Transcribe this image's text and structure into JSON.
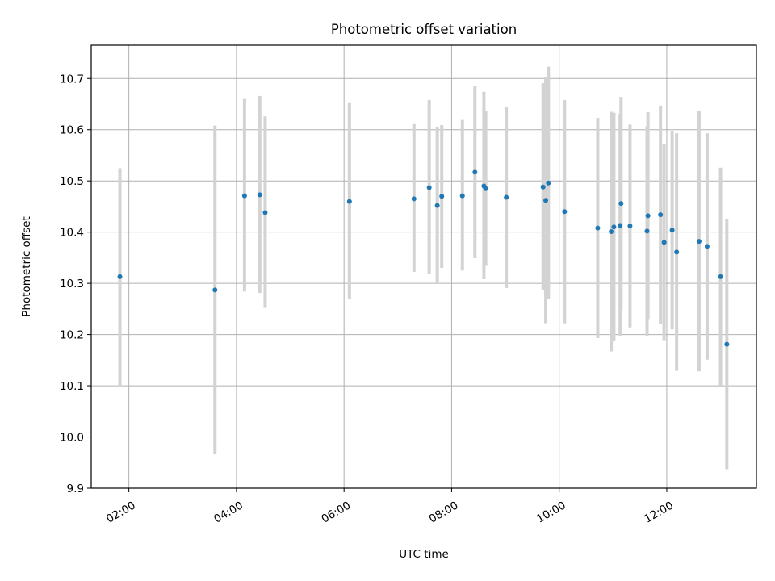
{
  "chart_data": {
    "type": "scatter",
    "title": "Photometric offset variation",
    "xlabel": "UTC time",
    "ylabel": "Photometric offset",
    "x_tick_labels": [
      "02:00",
      "04:00",
      "06:00",
      "08:00",
      "10:00",
      "12:00"
    ],
    "x_tick_values": [
      2,
      4,
      6,
      8,
      10,
      12
    ],
    "y_tick_labels": [
      "9.9",
      "10.0",
      "10.1",
      "10.2",
      "10.3",
      "10.4",
      "10.5",
      "10.6",
      "10.7"
    ],
    "y_tick_values": [
      9.9,
      10.0,
      10.1,
      10.2,
      10.3,
      10.4,
      10.5,
      10.6,
      10.7
    ],
    "xlim": [
      "01:18",
      "13:40"
    ],
    "ylim": [
      9.9,
      10.765
    ],
    "grid": true,
    "legend": "none",
    "colors": {
      "points": "#1f77b4",
      "errorbars": "#d3d3d3",
      "grid": "#b0b0b0"
    },
    "points": [
      {
        "x": "01:50",
        "y": 10.313,
        "lo": 10.1,
        "hi": 10.525
      },
      {
        "x": "03:36",
        "y": 10.287,
        "lo": 9.967,
        "hi": 10.608
      },
      {
        "x": "04:09",
        "y": 10.471,
        "lo": 10.284,
        "hi": 10.66
      },
      {
        "x": "04:26",
        "y": 10.473,
        "lo": 10.281,
        "hi": 10.666
      },
      {
        "x": "04:32",
        "y": 10.438,
        "lo": 10.252,
        "hi": 10.626
      },
      {
        "x": "06:06",
        "y": 10.46,
        "lo": 10.27,
        "hi": 10.652
      },
      {
        "x": "07:18",
        "y": 10.465,
        "lo": 10.322,
        "hi": 10.611
      },
      {
        "x": "07:35",
        "y": 10.487,
        "lo": 10.318,
        "hi": 10.658
      },
      {
        "x": "07:44",
        "y": 10.452,
        "lo": 10.3,
        "hi": 10.606
      },
      {
        "x": "07:49",
        "y": 10.47,
        "lo": 10.33,
        "hi": 10.609
      },
      {
        "x": "08:12",
        "y": 10.471,
        "lo": 10.325,
        "hi": 10.619
      },
      {
        "x": "08:26",
        "y": 10.517,
        "lo": 10.349,
        "hi": 10.685
      },
      {
        "x": "08:36",
        "y": 10.49,
        "lo": 10.308,
        "hi": 10.674
      },
      {
        "x": "08:38",
        "y": 10.485,
        "lo": 10.334,
        "hi": 10.636
      },
      {
        "x": "09:01",
        "y": 10.468,
        "lo": 10.291,
        "hi": 10.645
      },
      {
        "x": "09:42",
        "y": 10.488,
        "lo": 10.287,
        "hi": 10.691
      },
      {
        "x": "09:45",
        "y": 10.462,
        "lo": 10.222,
        "hi": 10.702
      },
      {
        "x": "09:48",
        "y": 10.496,
        "lo": 10.27,
        "hi": 10.723
      },
      {
        "x": "10:06",
        "y": 10.44,
        "lo": 10.222,
        "hi": 10.658
      },
      {
        "x": "10:43",
        "y": 10.408,
        "lo": 10.193,
        "hi": 10.623
      },
      {
        "x": "10:58",
        "y": 10.401,
        "lo": 10.167,
        "hi": 10.635
      },
      {
        "x": "11:01",
        "y": 10.41,
        "lo": 10.187,
        "hi": 10.633
      },
      {
        "x": "11:08",
        "y": 10.413,
        "lo": 10.197,
        "hi": 10.631
      },
      {
        "x": "11:09",
        "y": 10.456,
        "lo": 10.248,
        "hi": 10.664
      },
      {
        "x": "11:19",
        "y": 10.412,
        "lo": 10.214,
        "hi": 10.61
      },
      {
        "x": "11:38",
        "y": 10.402,
        "lo": 10.197,
        "hi": 10.607
      },
      {
        "x": "11:39",
        "y": 10.432,
        "lo": 10.23,
        "hi": 10.634
      },
      {
        "x": "11:53",
        "y": 10.434,
        "lo": 10.221,
        "hi": 10.647
      },
      {
        "x": "11:57",
        "y": 10.38,
        "lo": 10.189,
        "hi": 10.571
      },
      {
        "x": "12:06",
        "y": 10.404,
        "lo": 10.21,
        "hi": 10.598
      },
      {
        "x": "12:11",
        "y": 10.361,
        "lo": 10.129,
        "hi": 10.593
      },
      {
        "x": "12:36",
        "y": 10.382,
        "lo": 10.128,
        "hi": 10.636
      },
      {
        "x": "12:45",
        "y": 10.372,
        "lo": 10.151,
        "hi": 10.593
      },
      {
        "x": "13:00",
        "y": 10.313,
        "lo": 10.101,
        "hi": 10.526
      },
      {
        "x": "13:07",
        "y": 10.181,
        "lo": 9.937,
        "hi": 10.425
      }
    ]
  }
}
